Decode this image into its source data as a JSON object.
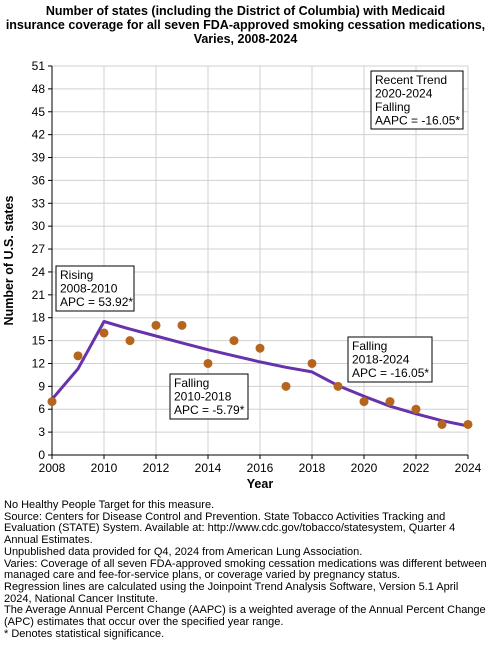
{
  "title_lines": [
    "Number of states (including the District of Columbia) with Medicaid",
    "insurance coverage for all seven FDA-approved smoking cessation medications,",
    "Varies,  2008-2024"
  ],
  "chart_data": {
    "type": "scatter",
    "xlabel": "Year",
    "ylabel": "Number of U.S. states",
    "xlim": [
      2008,
      2024
    ],
    "ylim": [
      0,
      51
    ],
    "x_ticks": [
      2008,
      2010,
      2012,
      2014,
      2016,
      2018,
      2020,
      2022,
      2024
    ],
    "y_ticks": [
      0,
      3,
      6,
      9,
      12,
      15,
      18,
      21,
      24,
      27,
      30,
      33,
      36,
      39,
      42,
      45,
      48,
      51
    ],
    "grid": true,
    "colors": {
      "points": "#b5651d",
      "trend": "#6633aa",
      "grid": "#d0d0d0"
    },
    "observed": {
      "x": [
        2008,
        2009,
        2010,
        2011,
        2012,
        2013,
        2014,
        2015,
        2016,
        2017,
        2018,
        2019,
        2020,
        2021,
        2022,
        2023,
        2024
      ],
      "y": [
        7,
        13,
        16,
        15,
        17,
        17,
        12,
        15,
        14,
        9,
        12,
        9,
        7,
        7,
        6,
        4,
        4
      ]
    },
    "trend_line": {
      "x": [
        2008,
        2009,
        2010,
        2011,
        2012,
        2013,
        2014,
        2015,
        2016,
        2017,
        2018,
        2019,
        2020,
        2021,
        2022,
        2023,
        2024
      ],
      "y": [
        7.3,
        11.3,
        17.5,
        16.5,
        15.6,
        14.7,
        13.8,
        13.0,
        12.2,
        11.5,
        10.9,
        9.1,
        7.7,
        6.4,
        5.4,
        4.5,
        3.8
      ]
    },
    "annotations": [
      {
        "lines": [
          "Recent Trend",
          "2020-2024",
          "Falling",
          "AAPC = -16.05*"
        ]
      },
      {
        "lines": [
          "Rising",
          "2008-2010",
          "APC = 53.92*"
        ]
      },
      {
        "lines": [
          "Falling",
          "2010-2018",
          "APC = -5.79*"
        ]
      },
      {
        "lines": [
          "Falling",
          "2018-2024",
          "APC = -16.05*"
        ]
      }
    ]
  },
  "notes": [
    "No Healthy People Target for this measure.",
    "Source: Centers for Disease Control and Prevention. State Tobacco Activities Tracking and Evaluation (STATE) System. Available at: http://www.cdc.gov/tobacco/statesystem, Quarter 4 Annual Estimates.",
    "Unpublished data provided for Q4, 2024 from American Lung Association.",
    "Varies: Coverage of all seven FDA-approved smoking cessation medications was different between managed care and fee-for-service plans, or coverage varied by pregnancy status.",
    "Regression lines are calculated using the Joinpoint Trend Analysis Software, Version 5.1 April 2024, National Cancer Institute.",
    "The Average Annual Percent Change (AAPC) is a weighted average of the Annual Percent Change (APC) estimates that occur over the specified year range.",
    "* Denotes statistical significance."
  ]
}
